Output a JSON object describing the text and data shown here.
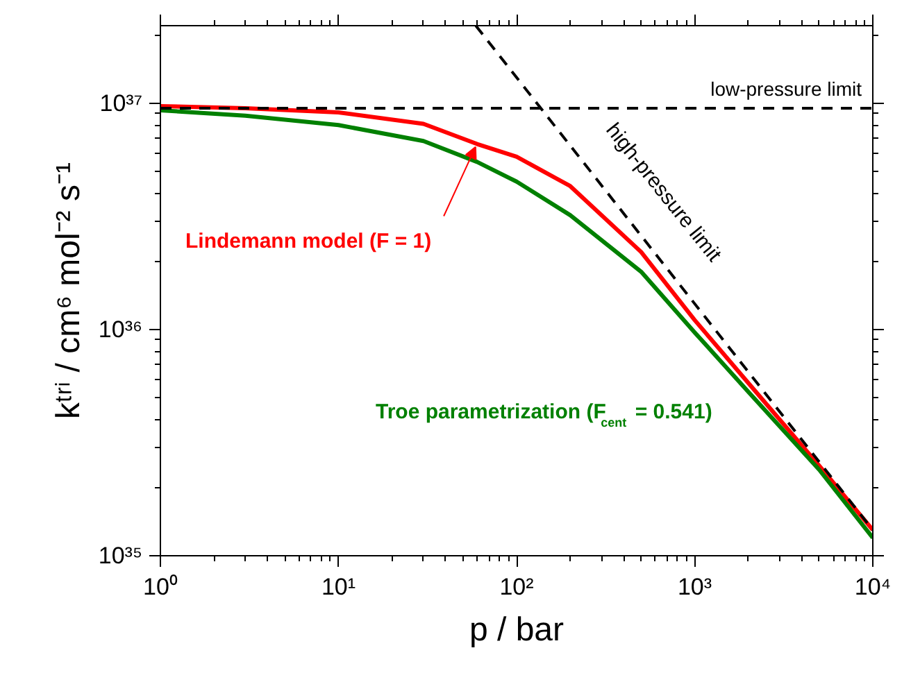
{
  "chart_data": {
    "type": "line",
    "xlabel": "p / bar",
    "ylabel": "kᵗʳⁱ / cm⁶ mol⁻² s⁻¹",
    "log": "xy",
    "xlim": [
      1,
      10000
    ],
    "ylim": [
      1e+35,
      2.2e+37
    ],
    "xticks": [
      {
        "value": 1,
        "label": "10⁰"
      },
      {
        "value": 10,
        "label": "10¹"
      },
      {
        "value": 100,
        "label": "10²"
      },
      {
        "value": 1000,
        "label": "10³"
      },
      {
        "value": 10000,
        "label": "10⁴"
      }
    ],
    "yticks": [
      {
        "value": 1e+35,
        "label": "10³⁵"
      },
      {
        "value": 1e+36,
        "label": "10³⁶"
      },
      {
        "value": 1e+37,
        "label": "10³⁷"
      }
    ],
    "grid": false,
    "marker": "none",
    "series": [
      {
        "name": "Lindemann model (F = 1)",
        "color": "#ff0000",
        "x": [
          1,
          3,
          10,
          30,
          60,
          100,
          200,
          500,
          1000,
          2000,
          5000,
          10000
        ],
        "values": [
          9.7e+36,
          9.5e+36,
          9.1e+36,
          8.1e+36,
          6.6e+36,
          5.8e+36,
          4.3e+36,
          2.2e+36,
          1.1e+36,
          5.8e+35,
          2.5e+35,
          1.3e+35
        ]
      },
      {
        "name": "Troe parametrization (F$_{cent}$ = 0.541)",
        "color": "#008000",
        "x": [
          1,
          3,
          10,
          30,
          60,
          100,
          200,
          500,
          1000,
          2000,
          5000,
          10000
        ],
        "values": [
          9.3e+36,
          8.8e+36,
          8e+36,
          6.8e+36,
          5.5e+36,
          4.5e+36,
          3.2e+36,
          1.8e+36,
          9.7e+35,
          5.3e+35,
          2.4e+35,
          1.2e+35
        ]
      },
      {
        "name": "high-pressure limit",
        "color": "#000000",
        "line_style": "dashed",
        "x": [
          59,
          10000
        ],
        "values": [
          2.2e+37,
          1.3e+35
        ]
      }
    ],
    "ref_lines": [
      {
        "axis": "y",
        "value": 9.5e+36,
        "label": "low-pressure limit",
        "color": "#000000",
        "line_style": "dashed"
      }
    ]
  }
}
